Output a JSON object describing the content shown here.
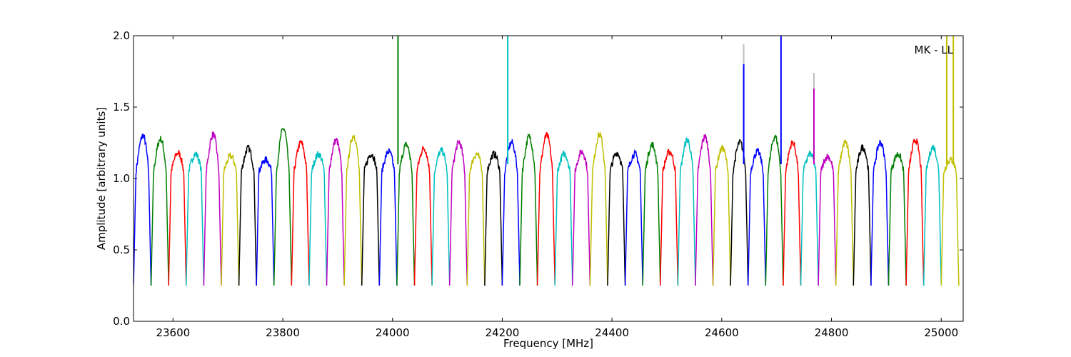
{
  "chart_data": {
    "type": "line",
    "title": "",
    "annotation": "MK - LL",
    "legend": "none",
    "grid": false,
    "xlabel": "Frequency [MHz]",
    "ylabel": "Amplitude [arbitrary units]",
    "xlim": [
      23528,
      25040
    ],
    "ylim": [
      0,
      2.0
    ],
    "xticks": [
      23600,
      23800,
      24000,
      24200,
      24400,
      24600,
      24800,
      25000
    ],
    "yticks": [
      0.0,
      0.5,
      1.0,
      1.5,
      2.0
    ],
    "xtick_labels": [
      "23600",
      "23800",
      "24000",
      "24200",
      "24400",
      "24600",
      "24800",
      "25000"
    ],
    "ytick_labels": [
      "0.0",
      "0.5",
      "1.0",
      "1.5",
      "2.0"
    ],
    "palette": [
      "#0000ff",
      "#007f00",
      "#ff0000",
      "#00bfbf",
      "#bf00bf",
      "#bfbf00",
      "#000000"
    ],
    "band_width_mhz": 32,
    "band_starts": [
      23528,
      23560,
      23592,
      23624,
      23656,
      23688,
      23720,
      23752,
      23784,
      23816,
      23848,
      23880,
      23912,
      23944,
      23976,
      24008,
      24040,
      24072,
      24104,
      24136,
      24168,
      24200,
      24232,
      24264,
      24296,
      24328,
      24360,
      24392,
      24424,
      24456,
      24488,
      24520,
      24552,
      24584,
      24616,
      24648,
      24680,
      24712,
      24744,
      24776,
      24808,
      24840,
      24872,
      24904,
      24936,
      24968,
      25000
    ],
    "band_colors": [
      "#0000ff",
      "#007f00",
      "#ff0000",
      "#00bfbf",
      "#bf00bf",
      "#bfbf00",
      "#000000",
      "#0000ff",
      "#007f00",
      "#ff0000",
      "#00bfbf",
      "#bf00bf",
      "#bfbf00",
      "#000000",
      "#0000ff",
      "#007f00",
      "#ff0000",
      "#00bfbf",
      "#bf00bf",
      "#bfbf00",
      "#000000",
      "#0000ff",
      "#007f00",
      "#ff0000",
      "#00bfbf",
      "#bf00bf",
      "#bfbf00",
      "#000000",
      "#0000ff",
      "#007f00",
      "#ff0000",
      "#00bfbf",
      "#bf00bf",
      "#bfbf00",
      "#000000",
      "#0000ff",
      "#007f00",
      "#ff0000",
      "#00bfbf",
      "#bf00bf",
      "#bfbf00",
      "#000000",
      "#0000ff",
      "#007f00",
      "#ff0000",
      "#00bfbf",
      "#bfbf00"
    ],
    "band_peaks": [
      1.36,
      1.33,
      1.21,
      1.2,
      1.37,
      1.18,
      1.25,
      1.15,
      1.42,
      1.3,
      1.2,
      1.32,
      1.36,
      1.2,
      1.22,
      1.28,
      1.25,
      1.23,
      1.3,
      1.2,
      1.2,
      1.3,
      1.35,
      1.36,
      1.2,
      1.22,
      1.37,
      1.21,
      1.2,
      1.28,
      1.22,
      1.32,
      1.35,
      1.25,
      1.3,
      1.22,
      1.35,
      1.3,
      1.2,
      1.18,
      1.3,
      1.26,
      1.3,
      1.2,
      1.32,
      1.26,
      1.15
    ],
    "spikes": [
      {
        "x": 24010,
        "y": 2.0,
        "color": "#007f00"
      },
      {
        "x": 24210,
        "y": 2.0,
        "color": "#00bfbf"
      },
      {
        "x": 24640,
        "y": 1.94,
        "color": "#bfbfbf"
      },
      {
        "x": 24640,
        "y": 1.8,
        "color": "#0000ff"
      },
      {
        "x": 24708,
        "y": 2.0,
        "color": "#0000ff"
      },
      {
        "x": 24768,
        "y": 1.74,
        "color": "#bfbfbf"
      },
      {
        "x": 24768,
        "y": 1.63,
        "color": "#bf00bf"
      },
      {
        "x": 25010,
        "y": 2.0,
        "color": "#bfbf00"
      },
      {
        "x": 25022,
        "y": 2.0,
        "color": "#bfbf00"
      }
    ]
  }
}
